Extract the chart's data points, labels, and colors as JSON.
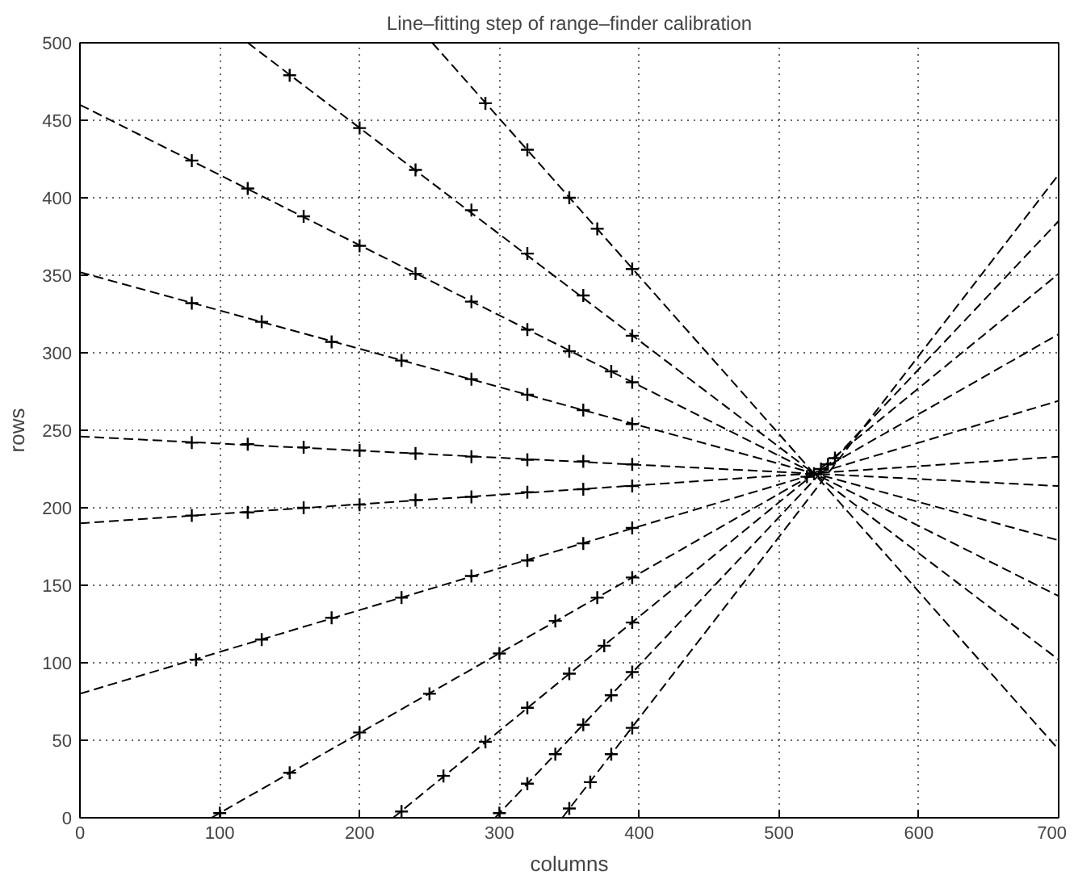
{
  "chart_data": {
    "type": "line",
    "title": "Line–fitting step of range–finder calibration",
    "xlabel": "columns",
    "ylabel": "rows",
    "xlim": [
      0,
      700
    ],
    "ylim": [
      0,
      500
    ],
    "xticks": [
      0,
      100,
      200,
      300,
      400,
      500,
      600,
      700
    ],
    "yticks": [
      0,
      50,
      100,
      150,
      200,
      250,
      300,
      350,
      400,
      450,
      500
    ],
    "grid": true,
    "line_style": "dashed",
    "series": [
      {
        "color": "#000000",
        "x": [
          0,
          700
        ],
        "values": [
          460,
          143
        ]
      },
      {
        "color": "#000000",
        "x": [
          0,
          700
        ],
        "values": [
          352,
          179
        ]
      },
      {
        "color": "#000000",
        "x": [
          0,
          700
        ],
        "values": [
          246,
          214
        ]
      },
      {
        "color": "#000000",
        "x": [
          0,
          700
        ],
        "values": [
          190,
          233
        ]
      },
      {
        "color": "#000000",
        "x": [
          0,
          700
        ],
        "values": [
          80,
          269
        ]
      },
      {
        "color": "#000000",
        "x": [
          120,
          700
        ],
        "values": [
          500,
          102
        ]
      },
      {
        "color": "#000000",
        "x": [
          252,
          700
        ],
        "values": [
          500,
          44
        ]
      },
      {
        "color": "#000000",
        "x": [
          94,
          700
        ],
        "values": [
          0,
          312
        ]
      },
      {
        "color": "#000000",
        "x": [
          224,
          700
        ],
        "values": [
          0,
          351
        ]
      },
      {
        "color": "#000000",
        "x": [
          297,
          700
        ],
        "values": [
          0,
          385
        ]
      },
      {
        "color": "#000000",
        "x": [
          345,
          700
        ],
        "values": [
          0,
          415
        ]
      },
      {
        "type": "scatter",
        "color": "#000000",
        "marker": "cross",
        "x": [
          80,
          120,
          160,
          200,
          240,
          280,
          320,
          350,
          380,
          395,
          80,
          130,
          180,
          230,
          280,
          320,
          360,
          395,
          80,
          120,
          160,
          200,
          240,
          280,
          320,
          360,
          395,
          80,
          120,
          160,
          200,
          240,
          280,
          320,
          360,
          395,
          83,
          130,
          180,
          230,
          280,
          320,
          360,
          395,
          150,
          200,
          240,
          280,
          320,
          360,
          395,
          290,
          320,
          350,
          370,
          395,
          100,
          150,
          200,
          250,
          300,
          340,
          370,
          395,
          230,
          260,
          290,
          320,
          350,
          375,
          395,
          300,
          320,
          340,
          360,
          380,
          395,
          350,
          365,
          380,
          395,
          520,
          525,
          530,
          535,
          540
        ],
        "values": [
          424,
          406,
          388,
          369,
          351,
          333,
          315,
          301,
          288,
          281,
          332,
          320,
          307,
          295,
          283,
          273,
          263,
          254,
          242,
          241,
          239,
          237,
          235,
          233,
          231,
          230,
          228,
          195,
          197,
          200,
          202,
          205,
          207,
          210,
          212,
          214,
          102,
          115,
          129,
          142,
          156,
          166,
          177,
          187,
          479,
          445,
          418,
          392,
          364,
          337,
          311,
          461,
          431,
          400,
          380,
          354,
          3,
          29,
          55,
          80,
          106,
          127,
          142,
          155,
          4,
          27,
          49,
          71,
          93,
          111,
          126,
          3,
          22,
          41,
          60,
          79,
          94,
          6,
          23,
          41,
          58,
          220,
          222,
          225,
          228,
          232
        ]
      }
    ]
  }
}
